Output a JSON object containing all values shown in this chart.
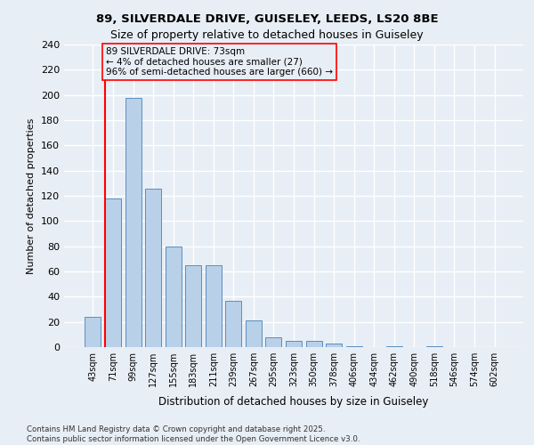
{
  "title1": "89, SILVERDALE DRIVE, GUISELEY, LEEDS, LS20 8BE",
  "title2": "Size of property relative to detached houses in Guiseley",
  "xlabel": "Distribution of detached houses by size in Guiseley",
  "ylabel": "Number of detached properties",
  "footer1": "Contains HM Land Registry data © Crown copyright and database right 2025.",
  "footer2": "Contains public sector information licensed under the Open Government Licence v3.0.",
  "categories": [
    "43sqm",
    "71sqm",
    "99sqm",
    "127sqm",
    "155sqm",
    "183sqm",
    "211sqm",
    "239sqm",
    "267sqm",
    "295sqm",
    "323sqm",
    "350sqm",
    "378sqm",
    "406sqm",
    "434sqm",
    "462sqm",
    "490sqm",
    "518sqm",
    "546sqm",
    "574sqm",
    "602sqm"
  ],
  "values": [
    24,
    118,
    198,
    126,
    80,
    65,
    65,
    37,
    21,
    8,
    5,
    5,
    3,
    1,
    0,
    1,
    0,
    1,
    0,
    0,
    0
  ],
  "bar_color": "#b8d0e8",
  "bar_edge_color": "#5a8fc0",
  "background_color": "#e8eef5",
  "grid_color": "#ffffff",
  "red_line_index": 1,
  "annotation_title": "89 SILVERDALE DRIVE: 73sqm",
  "annotation_line1": "← 4% of detached houses are smaller (27)",
  "annotation_line2": "96% of semi-detached houses are larger (660) →",
  "ylim": [
    0,
    240
  ],
  "yticks": [
    0,
    20,
    40,
    60,
    80,
    100,
    120,
    140,
    160,
    180,
    200,
    220,
    240
  ]
}
